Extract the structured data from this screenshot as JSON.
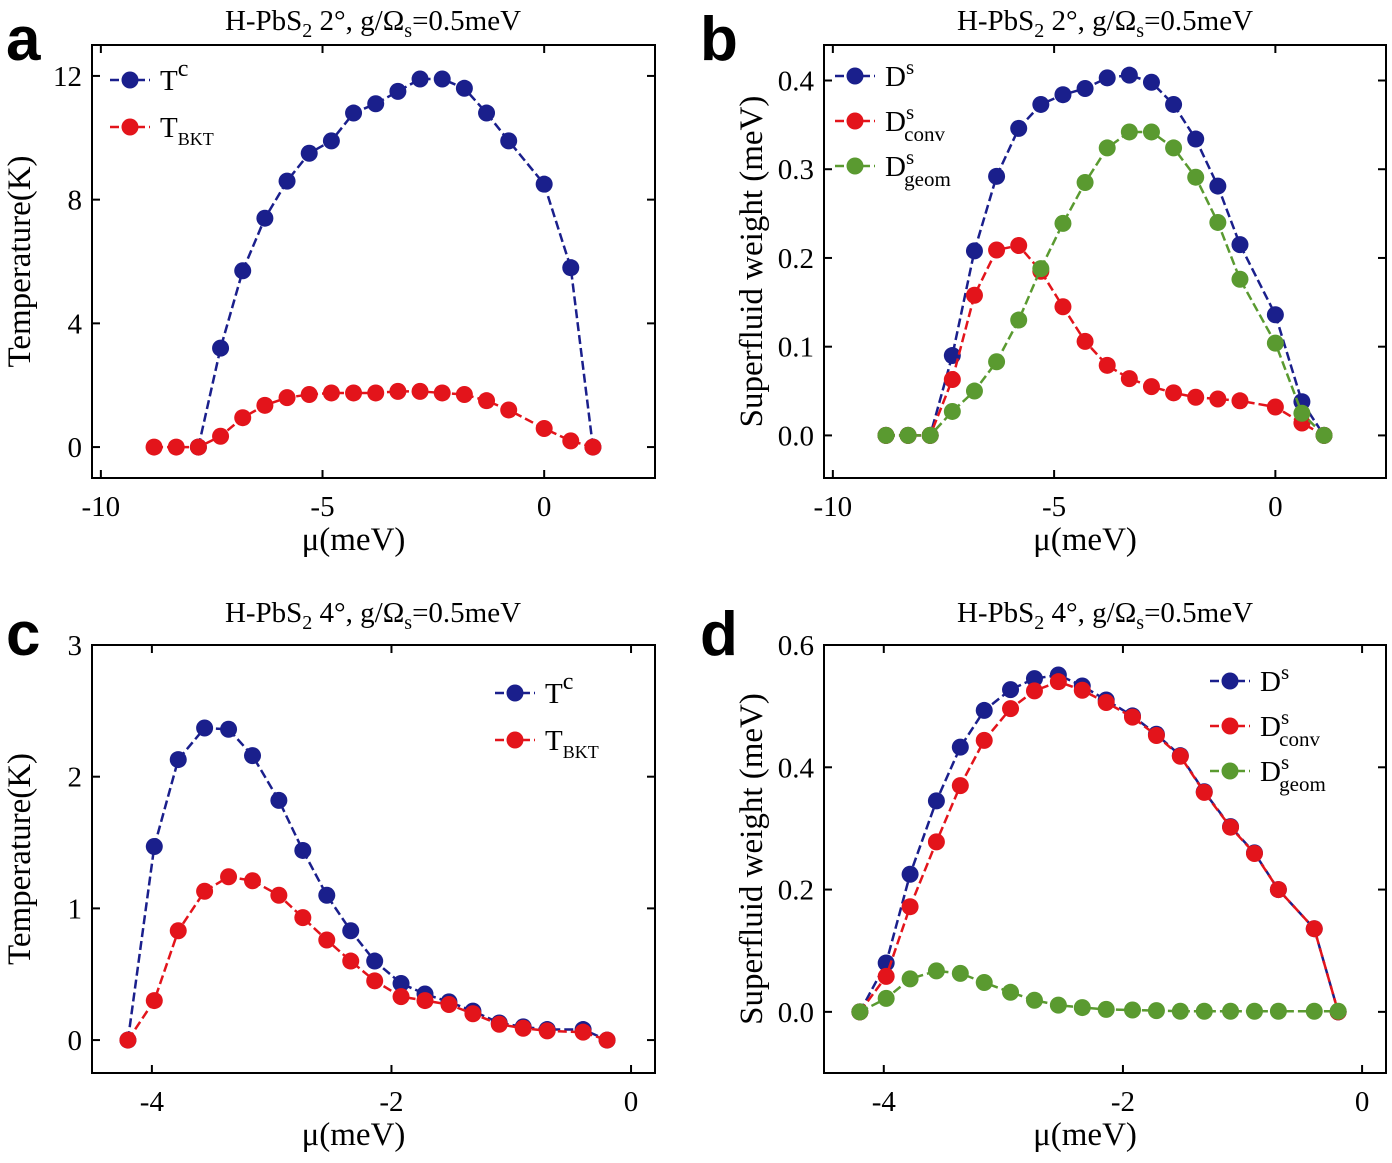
{
  "chart_data": [
    {
      "panel": "a",
      "type": "line",
      "title": "H-PbS₂  2°, g/Ωₛ=0.5meV",
      "xlabel": "μ(meV)",
      "ylabel": "Temperature(K)",
      "xlim": [
        -10.2,
        2.5
      ],
      "ylim": [
        -1.0,
        13.0
      ],
      "xticks": [
        -10,
        -5,
        0
      ],
      "xtick_labels": [
        "-10",
        "-5",
        "0"
      ],
      "yticks": [
        0,
        4,
        8,
        12
      ],
      "ytick_labels": [
        "0",
        "4",
        "8",
        "12"
      ],
      "legend_position": "top-left",
      "series": [
        {
          "name": "Tc",
          "label_main": "T",
          "label_sub": "c",
          "label_sub_style": "superscript",
          "color": "#1a1f8c",
          "x": [
            -7.8,
            -7.3,
            -6.8,
            -6.3,
            -5.8,
            -5.3,
            -4.8,
            -4.3,
            -3.8,
            -3.3,
            -2.8,
            -2.3,
            -1.8,
            -1.3,
            -0.8,
            0.0,
            0.6,
            1.1
          ],
          "y": [
            0.0,
            3.2,
            5.7,
            7.4,
            8.6,
            9.5,
            9.9,
            10.8,
            11.1,
            11.5,
            11.9,
            11.9,
            11.6,
            10.8,
            9.9,
            8.5,
            5.8,
            0.0
          ]
        },
        {
          "name": "TBKT",
          "label_main": "T",
          "label_sub": "BKT",
          "label_sub_style": "subscript",
          "color": "#e3141b",
          "x": [
            -8.8,
            -8.3,
            -7.8,
            -7.3,
            -6.8,
            -6.3,
            -5.8,
            -5.3,
            -4.8,
            -4.3,
            -3.8,
            -3.3,
            -2.8,
            -2.3,
            -1.8,
            -1.3,
            -0.8,
            0.0,
            0.6,
            1.1
          ],
          "y": [
            0.0,
            0.0,
            0.0,
            0.35,
            0.95,
            1.35,
            1.6,
            1.7,
            1.75,
            1.75,
            1.75,
            1.8,
            1.8,
            1.75,
            1.7,
            1.5,
            1.2,
            0.6,
            0.2,
            0.0
          ]
        }
      ]
    },
    {
      "panel": "b",
      "type": "line",
      "title": "H-PbS₂  2°, g/Ωₛ=0.5meV",
      "xlabel": "μ(meV)",
      "ylabel": "Superfluid weight (meV)",
      "xlim": [
        -10.2,
        2.5
      ],
      "ylim": [
        -0.048,
        0.44
      ],
      "xticks": [
        -10,
        -5,
        0
      ],
      "xtick_labels": [
        "-10",
        "-5",
        "0"
      ],
      "yticks": [
        0.0,
        0.1,
        0.2,
        0.3,
        0.4
      ],
      "ytick_labels": [
        "0.0",
        "0.1",
        "0.2",
        "0.3",
        "0.4"
      ],
      "legend_position": "top-left",
      "series": [
        {
          "name": "Ds",
          "label_main": "D",
          "label_sup": "s",
          "label_sub": "",
          "color": "#1a1f8c",
          "x": [
            -8.8,
            -8.3,
            -7.8,
            -7.3,
            -6.8,
            -6.3,
            -5.8,
            -5.3,
            -4.8,
            -4.3,
            -3.8,
            -3.3,
            -2.8,
            -2.3,
            -1.8,
            -1.3,
            -0.8,
            0.0,
            0.6,
            1.1
          ],
          "y": [
            0.0,
            0.0,
            0.0,
            0.09,
            0.208,
            0.292,
            0.346,
            0.373,
            0.384,
            0.391,
            0.403,
            0.406,
            0.398,
            0.373,
            0.334,
            0.281,
            0.215,
            0.136,
            0.038,
            0.0
          ]
        },
        {
          "name": "Ds conv",
          "label_main": "D",
          "label_sup": "s",
          "label_sub": "conv",
          "color": "#e3141b",
          "x": [
            -8.8,
            -8.3,
            -7.8,
            -7.3,
            -6.8,
            -6.3,
            -5.8,
            -5.3,
            -4.8,
            -4.3,
            -3.8,
            -3.3,
            -2.8,
            -2.3,
            -1.8,
            -1.3,
            -0.8,
            0.0,
            0.6,
            1.1
          ],
          "y": [
            0.0,
            0.0,
            0.0,
            0.063,
            0.158,
            0.209,
            0.214,
            0.185,
            0.145,
            0.106,
            0.079,
            0.064,
            0.055,
            0.048,
            0.043,
            0.041,
            0.039,
            0.032,
            0.014,
            0.0
          ]
        },
        {
          "name": "Ds geom",
          "label_main": "D",
          "label_sup": "s",
          "label_sub": "geom",
          "color": "#5a9a30",
          "x": [
            -8.8,
            -8.3,
            -7.8,
            -7.3,
            -6.8,
            -6.3,
            -5.8,
            -5.3,
            -4.8,
            -4.3,
            -3.8,
            -3.3,
            -2.8,
            -2.3,
            -1.8,
            -1.3,
            -0.8,
            0.0,
            0.6,
            1.1
          ],
          "y": [
            0.0,
            0.0,
            0.0,
            0.027,
            0.05,
            0.083,
            0.13,
            0.188,
            0.239,
            0.285,
            0.324,
            0.342,
            0.342,
            0.324,
            0.291,
            0.24,
            0.176,
            0.104,
            0.025,
            0.0
          ]
        }
      ]
    },
    {
      "panel": "c",
      "type": "line",
      "title": "H-PbS₂  4°, g/Ωₛ=0.5meV",
      "xlabel": "μ(meV)",
      "ylabel": "Temperature(K)",
      "xlim": [
        -4.5,
        0.2
      ],
      "ylim": [
        -0.25,
        3.0
      ],
      "xticks": [
        -4,
        -2,
        0
      ],
      "xtick_labels": [
        "-4",
        "-2",
        "0"
      ],
      "yticks": [
        0,
        1,
        2,
        3
      ],
      "ytick_labels": [
        "0",
        "1",
        "2",
        "3"
      ],
      "legend_position": "top-right",
      "series": [
        {
          "name": "Tc",
          "label_main": "T",
          "label_sub": "c",
          "label_sub_style": "superscript",
          "color": "#1a1f8c",
          "x": [
            -4.2,
            -3.98,
            -3.78,
            -3.56,
            -3.36,
            -3.16,
            -2.94,
            -2.74,
            -2.54,
            -2.34,
            -2.14,
            -1.92,
            -1.72,
            -1.52,
            -1.32,
            -1.1,
            -0.9,
            -0.7,
            -0.4,
            -0.2
          ],
          "y": [
            0.0,
            1.47,
            2.13,
            2.37,
            2.36,
            2.16,
            1.82,
            1.44,
            1.1,
            0.83,
            0.6,
            0.43,
            0.35,
            0.29,
            0.22,
            0.13,
            0.1,
            0.08,
            0.08,
            0.0
          ]
        },
        {
          "name": "TBKT",
          "label_main": "T",
          "label_sub": "BKT",
          "label_sub_style": "subscript",
          "color": "#e3141b",
          "x": [
            -4.2,
            -3.98,
            -3.78,
            -3.56,
            -3.36,
            -3.16,
            -2.94,
            -2.74,
            -2.54,
            -2.34,
            -2.14,
            -1.92,
            -1.72,
            -1.52,
            -1.32,
            -1.1,
            -0.9,
            -0.7,
            -0.4,
            -0.2
          ],
          "y": [
            0.0,
            0.3,
            0.83,
            1.13,
            1.24,
            1.21,
            1.1,
            0.93,
            0.76,
            0.6,
            0.45,
            0.33,
            0.3,
            0.27,
            0.2,
            0.12,
            0.09,
            0.07,
            0.06,
            0.0
          ]
        }
      ]
    },
    {
      "panel": "d",
      "type": "line",
      "title": "H-PbS₂  4°, g/Ωₛ=0.5meV",
      "xlabel": "μ(meV)",
      "ylabel": "Superfluid weight (meV)",
      "xlim": [
        -4.5,
        0.2
      ],
      "ylim": [
        -0.1,
        0.6
      ],
      "xticks": [
        -4,
        -2,
        0
      ],
      "xtick_labels": [
        "-4",
        "-2",
        "0"
      ],
      "yticks": [
        0.0,
        0.2,
        0.4,
        0.6
      ],
      "ytick_labels": [
        "0.0",
        "0.2",
        "0.4",
        "0.6"
      ],
      "legend_position": "top-right",
      "series": [
        {
          "name": "Ds",
          "label_main": "D",
          "label_sup": "s",
          "label_sub": "",
          "color": "#1a1f8c",
          "x": [
            -4.2,
            -3.98,
            -3.78,
            -3.56,
            -3.36,
            -3.16,
            -2.94,
            -2.74,
            -2.54,
            -2.34,
            -2.14,
            -1.92,
            -1.72,
            -1.52,
            -1.32,
            -1.1,
            -0.9,
            -0.7,
            -0.4,
            -0.2
          ],
          "y": [
            0.0,
            0.08,
            0.225,
            0.345,
            0.433,
            0.493,
            0.527,
            0.545,
            0.551,
            0.533,
            0.51,
            0.484,
            0.454,
            0.419,
            0.36,
            0.303,
            0.26,
            0.2,
            0.136,
            0.0
          ]
        },
        {
          "name": "Ds conv",
          "label_main": "D",
          "label_sup": "s",
          "label_sub": "conv",
          "color": "#e3141b",
          "x": [
            -4.2,
            -3.98,
            -3.78,
            -3.56,
            -3.36,
            -3.16,
            -2.94,
            -2.74,
            -2.54,
            -2.34,
            -2.14,
            -1.92,
            -1.72,
            -1.52,
            -1.32,
            -1.1,
            -0.9,
            -0.7,
            -0.4,
            -0.2
          ],
          "y": [
            0.0,
            0.058,
            0.172,
            0.278,
            0.37,
            0.444,
            0.496,
            0.525,
            0.54,
            0.526,
            0.506,
            0.482,
            0.452,
            0.418,
            0.359,
            0.302,
            0.259,
            0.2,
            0.136,
            0.0
          ]
        },
        {
          "name": "Ds geom",
          "label_main": "D",
          "label_sup": "s",
          "label_sub": "geom",
          "color": "#5a9a30",
          "x": [
            -4.2,
            -3.98,
            -3.78,
            -3.56,
            -3.36,
            -3.16,
            -2.94,
            -2.74,
            -2.54,
            -2.34,
            -2.14,
            -1.92,
            -1.72,
            -1.52,
            -1.32,
            -1.1,
            -0.9,
            -0.7,
            -0.4,
            -0.2
          ],
          "y": [
            0.0,
            0.022,
            0.054,
            0.067,
            0.063,
            0.048,
            0.032,
            0.019,
            0.011,
            0.007,
            0.004,
            0.003,
            0.002,
            0.001,
            0.001,
            0.001,
            0.001,
            0.001,
            0.001,
            0.001
          ]
        }
      ]
    }
  ]
}
